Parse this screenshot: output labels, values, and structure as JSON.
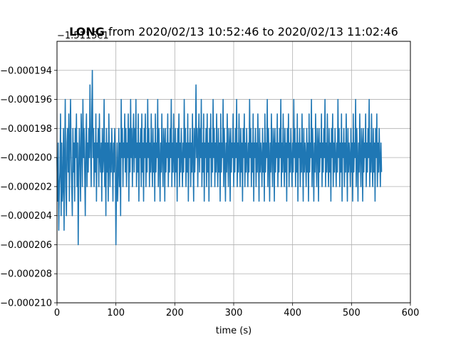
{
  "chart_data": {
    "type": "line",
    "title_bold": "LONG",
    "title_rest": " from 2020/02/13 10:52:46 to 2020/02/13 11:02:46",
    "offset_label": "−1.5115e1",
    "xlabel": "time (s)",
    "ylabel": "",
    "xlim": [
      0,
      600
    ],
    "ylim": [
      -0.00021,
      -0.000192
    ],
    "xticks": [
      0,
      100,
      200,
      300,
      400,
      500,
      600
    ],
    "xtick_labels": [
      "0",
      "100",
      "200",
      "300",
      "400",
      "500",
      "600"
    ],
    "yticks": [
      -0.000194,
      -0.000196,
      -0.000198,
      -0.0002,
      -0.000202,
      -0.000204,
      -0.000206,
      -0.000208,
      -0.00021
    ],
    "ytick_labels": [
      "−0.000194",
      "−0.000196",
      "−0.000198",
      "−0.000200",
      "−0.000202",
      "−0.000204",
      "−0.000206",
      "−0.000208",
      "−0.000210"
    ],
    "grid": true,
    "series": [
      {
        "color": "#1f77b4",
        "x_start": 0,
        "x_step": 1,
        "values": [
          -0.0002,
          -0.000203,
          -0.000199,
          -0.000205,
          -0.000202,
          -0.000201,
          -0.000197,
          -0.000204,
          -0.000199,
          -0.000203,
          -0.000202,
          -0.000198,
          -0.000205,
          -0.0002,
          -0.000196,
          -0.000202,
          -0.000204,
          -0.000199,
          -0.000198,
          -0.000201,
          -0.000197,
          -0.000203,
          -0.000199,
          -0.000196,
          -0.0002,
          -0.000202,
          -0.000204,
          -0.000198,
          -0.000201,
          -0.000199,
          -0.000203,
          -0.000198,
          -0.0002,
          -0.000197,
          -0.000202,
          -0.000199,
          -0.000206,
          -0.000201,
          -0.000198,
          -0.0002,
          -0.000203,
          -0.000197,
          -0.000199,
          -0.000202,
          -0.000196,
          -0.0002,
          -0.000198,
          -0.000201,
          -0.000204,
          -0.000199,
          -0.000197,
          -0.000202,
          -0.000199,
          -0.000201,
          -0.000198,
          -0.0002,
          -0.000195,
          -0.000199,
          -0.000202,
          -0.000197,
          -0.000194,
          -0.0002,
          -0.000198,
          -0.000202,
          -0.000199,
          -0.000201,
          -0.000197,
          -0.000203,
          -0.000199,
          -0.0002,
          -0.000198,
          -0.000202,
          -0.000197,
          -0.0002,
          -0.000201,
          -0.000199,
          -0.000203,
          -0.000198,
          -0.000201,
          -0.0002,
          -0.000196,
          -0.000202,
          -0.000199,
          -0.000204,
          -0.000198,
          -0.000201,
          -0.000199,
          -0.000203,
          -0.000197,
          -0.0002,
          -0.000202,
          -0.000199,
          -0.000201,
          -0.000198,
          -0.0002,
          -0.000203,
          -0.000199,
          -0.000201,
          -0.000198,
          -0.0002,
          -0.000206,
          -0.000202,
          -0.000199,
          -0.000203,
          -0.000201,
          -0.000198,
          -0.000202,
          -0.000199,
          -0.000204,
          -0.000196,
          -0.0002,
          -0.000198,
          -0.000202,
          -0.000199,
          -0.0002,
          -0.000197,
          -0.000201,
          -0.000198,
          -0.000202,
          -0.000199,
          -0.0002,
          -0.000197,
          -0.000203,
          -0.000198,
          -0.000201,
          -0.000196,
          -0.0002,
          -0.000198,
          -0.000202,
          -0.000199,
          -0.000197,
          -0.000201,
          -0.000198,
          -0.0002,
          -0.000196,
          -0.000202,
          -0.000199,
          -0.000201,
          -0.000197,
          -0.000203,
          -0.000199,
          -0.0002,
          -0.000198,
          -0.000202,
          -0.000197,
          -0.000201,
          -0.000199,
          -0.000203,
          -0.000198,
          -0.0002,
          -0.000197,
          -0.000202,
          -0.000199,
          -0.000201,
          -0.000196,
          -0.0002,
          -0.000198,
          -0.000202,
          -0.000199,
          -0.000201,
          -0.000197,
          -0.0002,
          -0.000202,
          -0.000198,
          -0.000201,
          -0.000199,
          -0.000203,
          -0.000197,
          -0.000201,
          -0.000199,
          -0.0002,
          -0.000196,
          -0.000202,
          -0.000198,
          -0.0002,
          -0.000203,
          -0.000199,
          -0.000201,
          -0.000197,
          -0.0002,
          -0.000202,
          -0.000198,
          -0.000199,
          -0.000203,
          -0.000198,
          -0.000201,
          -0.000199,
          -0.0002,
          -0.000197,
          -0.000202,
          -0.000199,
          -0.000201,
          -0.000198,
          -0.0002,
          -0.000196,
          -0.000202,
          -0.000199,
          -0.000201,
          -0.000197,
          -0.0002,
          -0.000202,
          -0.000198,
          -0.000201,
          -0.000199,
          -0.000203,
          -0.000198,
          -0.0002,
          -0.000197,
          -0.000202,
          -0.000199,
          -0.000201,
          -0.000198,
          -0.0002,
          -0.000202,
          -0.000199,
          -0.000201,
          -0.000196,
          -0.0002,
          -0.000198,
          -0.000202,
          -0.000199,
          -0.000201,
          -0.000197,
          -0.000203,
          -0.000199,
          -0.0002,
          -0.000198,
          -0.000202,
          -0.000199,
          -0.000201,
          -0.000197,
          -0.0002,
          -0.000203,
          -0.000198,
          -0.000201,
          -0.000199,
          -0.000195,
          -0.0002,
          -0.000198,
          -0.000202,
          -0.000199,
          -0.000197,
          -0.000201,
          -0.000198,
          -0.0002,
          -0.000196,
          -0.000202,
          -0.000199,
          -0.000201,
          -0.000197,
          -0.000203,
          -0.000199,
          -0.0002,
          -0.000198,
          -0.000202,
          -0.000197,
          -0.000201,
          -0.000199,
          -0.000203,
          -0.000198,
          -0.0002,
          -0.000197,
          -0.000202,
          -0.000199,
          -0.000201,
          -0.000196,
          -0.0002,
          -0.000198,
          -0.000202,
          -0.000199,
          -0.000201,
          -0.000197,
          -0.0002,
          -0.000202,
          -0.000198,
          -0.000201,
          -0.000199,
          -0.000203,
          -0.000197,
          -0.000201,
          -0.000199,
          -0.0002,
          -0.000196,
          -0.000202,
          -0.000198,
          -0.0002,
          -0.000203,
          -0.000199,
          -0.000201,
          -0.000197,
          -0.0002,
          -0.000202,
          -0.000198,
          -0.000199,
          -0.000203,
          -0.000198,
          -0.000201,
          -0.000199,
          -0.0002,
          -0.000197,
          -0.000202,
          -0.000199,
          -0.000201,
          -0.000198,
          -0.0002,
          -0.000196,
          -0.000202,
          -0.000199,
          -0.000201,
          -0.000197,
          -0.0002,
          -0.000202,
          -0.000198,
          -0.000201,
          -0.000199,
          -0.000203,
          -0.000198,
          -0.0002,
          -0.000197,
          -0.000202,
          -0.000199,
          -0.000201,
          -0.000198,
          -0.0002,
          -0.000202,
          -0.000199,
          -0.000201,
          -0.000196,
          -0.0002,
          -0.000198,
          -0.000202,
          -0.000199,
          -0.000201,
          -0.000197,
          -0.000203,
          -0.000199,
          -0.0002,
          -0.000198,
          -0.000202,
          -0.000199,
          -0.000201,
          -0.000197,
          -0.0002,
          -0.000203,
          -0.000198,
          -0.000201,
          -0.000199,
          -0.0002,
          -0.000202,
          -0.000198,
          -0.000201,
          -0.000199,
          -0.000203,
          -0.000197,
          -0.000201,
          -0.000199,
          -0.0002,
          -0.000196,
          -0.000202,
          -0.000198,
          -0.0002,
          -0.000203,
          -0.000199,
          -0.000201,
          -0.000197,
          -0.0002,
          -0.000202,
          -0.000198,
          -0.000199,
          -0.000203,
          -0.000198,
          -0.000201,
          -0.000199,
          -0.0002,
          -0.000197,
          -0.000202,
          -0.000199,
          -0.000201,
          -0.000198,
          -0.0002,
          -0.000196,
          -0.000202,
          -0.000199,
          -0.000201,
          -0.000197,
          -0.0002,
          -0.000202,
          -0.000198,
          -0.000201,
          -0.000199,
          -0.000203,
          -0.000198,
          -0.0002,
          -0.000197,
          -0.000202,
          -0.000199,
          -0.000201,
          -0.000198,
          -0.0002,
          -0.000202,
          -0.000199,
          -0.000201,
          -0.000196,
          -0.0002,
          -0.000198,
          -0.000202,
          -0.000199,
          -0.000201,
          -0.000197,
          -0.000203,
          -0.000199,
          -0.0002,
          -0.000198,
          -0.000202,
          -0.000199,
          -0.000201,
          -0.000197,
          -0.0002,
          -0.000203,
          -0.000198,
          -0.000201,
          -0.000199,
          -0.0002,
          -0.000202,
          -0.000198,
          -0.000201,
          -0.000199,
          -0.000203,
          -0.000197,
          -0.000201,
          -0.000199,
          -0.0002,
          -0.000196,
          -0.000202,
          -0.000198,
          -0.0002,
          -0.000203,
          -0.000199,
          -0.000201,
          -0.000197,
          -0.0002,
          -0.000202,
          -0.000198,
          -0.000199,
          -0.000203,
          -0.000198,
          -0.000201,
          -0.000199,
          -0.0002,
          -0.000197,
          -0.000202,
          -0.000199,
          -0.000201,
          -0.000198,
          -0.0002,
          -0.000196,
          -0.000202,
          -0.000199,
          -0.000201,
          -0.000197,
          -0.0002,
          -0.000202,
          -0.000198,
          -0.000201,
          -0.000199,
          -0.000203,
          -0.000198,
          -0.0002,
          -0.000197,
          -0.000202,
          -0.000199,
          -0.000201,
          -0.000198,
          -0.0002,
          -0.000202,
          -0.000199,
          -0.000201,
          -0.000196,
          -0.0002,
          -0.000198,
          -0.000202,
          -0.000199,
          -0.000201,
          -0.000197,
          -0.000203,
          -0.000199,
          -0.0002,
          -0.000198,
          -0.000202,
          -0.000199,
          -0.000201,
          -0.000197,
          -0.0002,
          -0.000203,
          -0.000198,
          -0.000201,
          -0.000199,
          -0.0002,
          -0.000202,
          -0.000198,
          -0.000201,
          -0.000199,
          -0.000203,
          -0.000197,
          -0.000201,
          -0.000199,
          -0.0002,
          -0.000196,
          -0.000202,
          -0.000198,
          -0.0002,
          -0.000203,
          -0.000199,
          -0.000201,
          -0.000197,
          -0.0002,
          -0.000202,
          -0.000198,
          -0.000199,
          -0.000203,
          -0.000198,
          -0.000201,
          -0.000199,
          -0.0002,
          -0.000197,
          -0.000202,
          -0.000199,
          -0.000201,
          -0.000198,
          -0.0002,
          -0.000196,
          -0.000202,
          -0.000199,
          -0.000201,
          -0.000197,
          -0.0002,
          -0.000202,
          -0.000198,
          -0.000201,
          -0.000199,
          -0.000203,
          -0.000198,
          -0.0002,
          -0.000197,
          -0.000202,
          -0.000199,
          -0.000201,
          -0.000198,
          -0.0002,
          -0.000202,
          -0.000199,
          -0.000201
        ]
      }
    ]
  }
}
